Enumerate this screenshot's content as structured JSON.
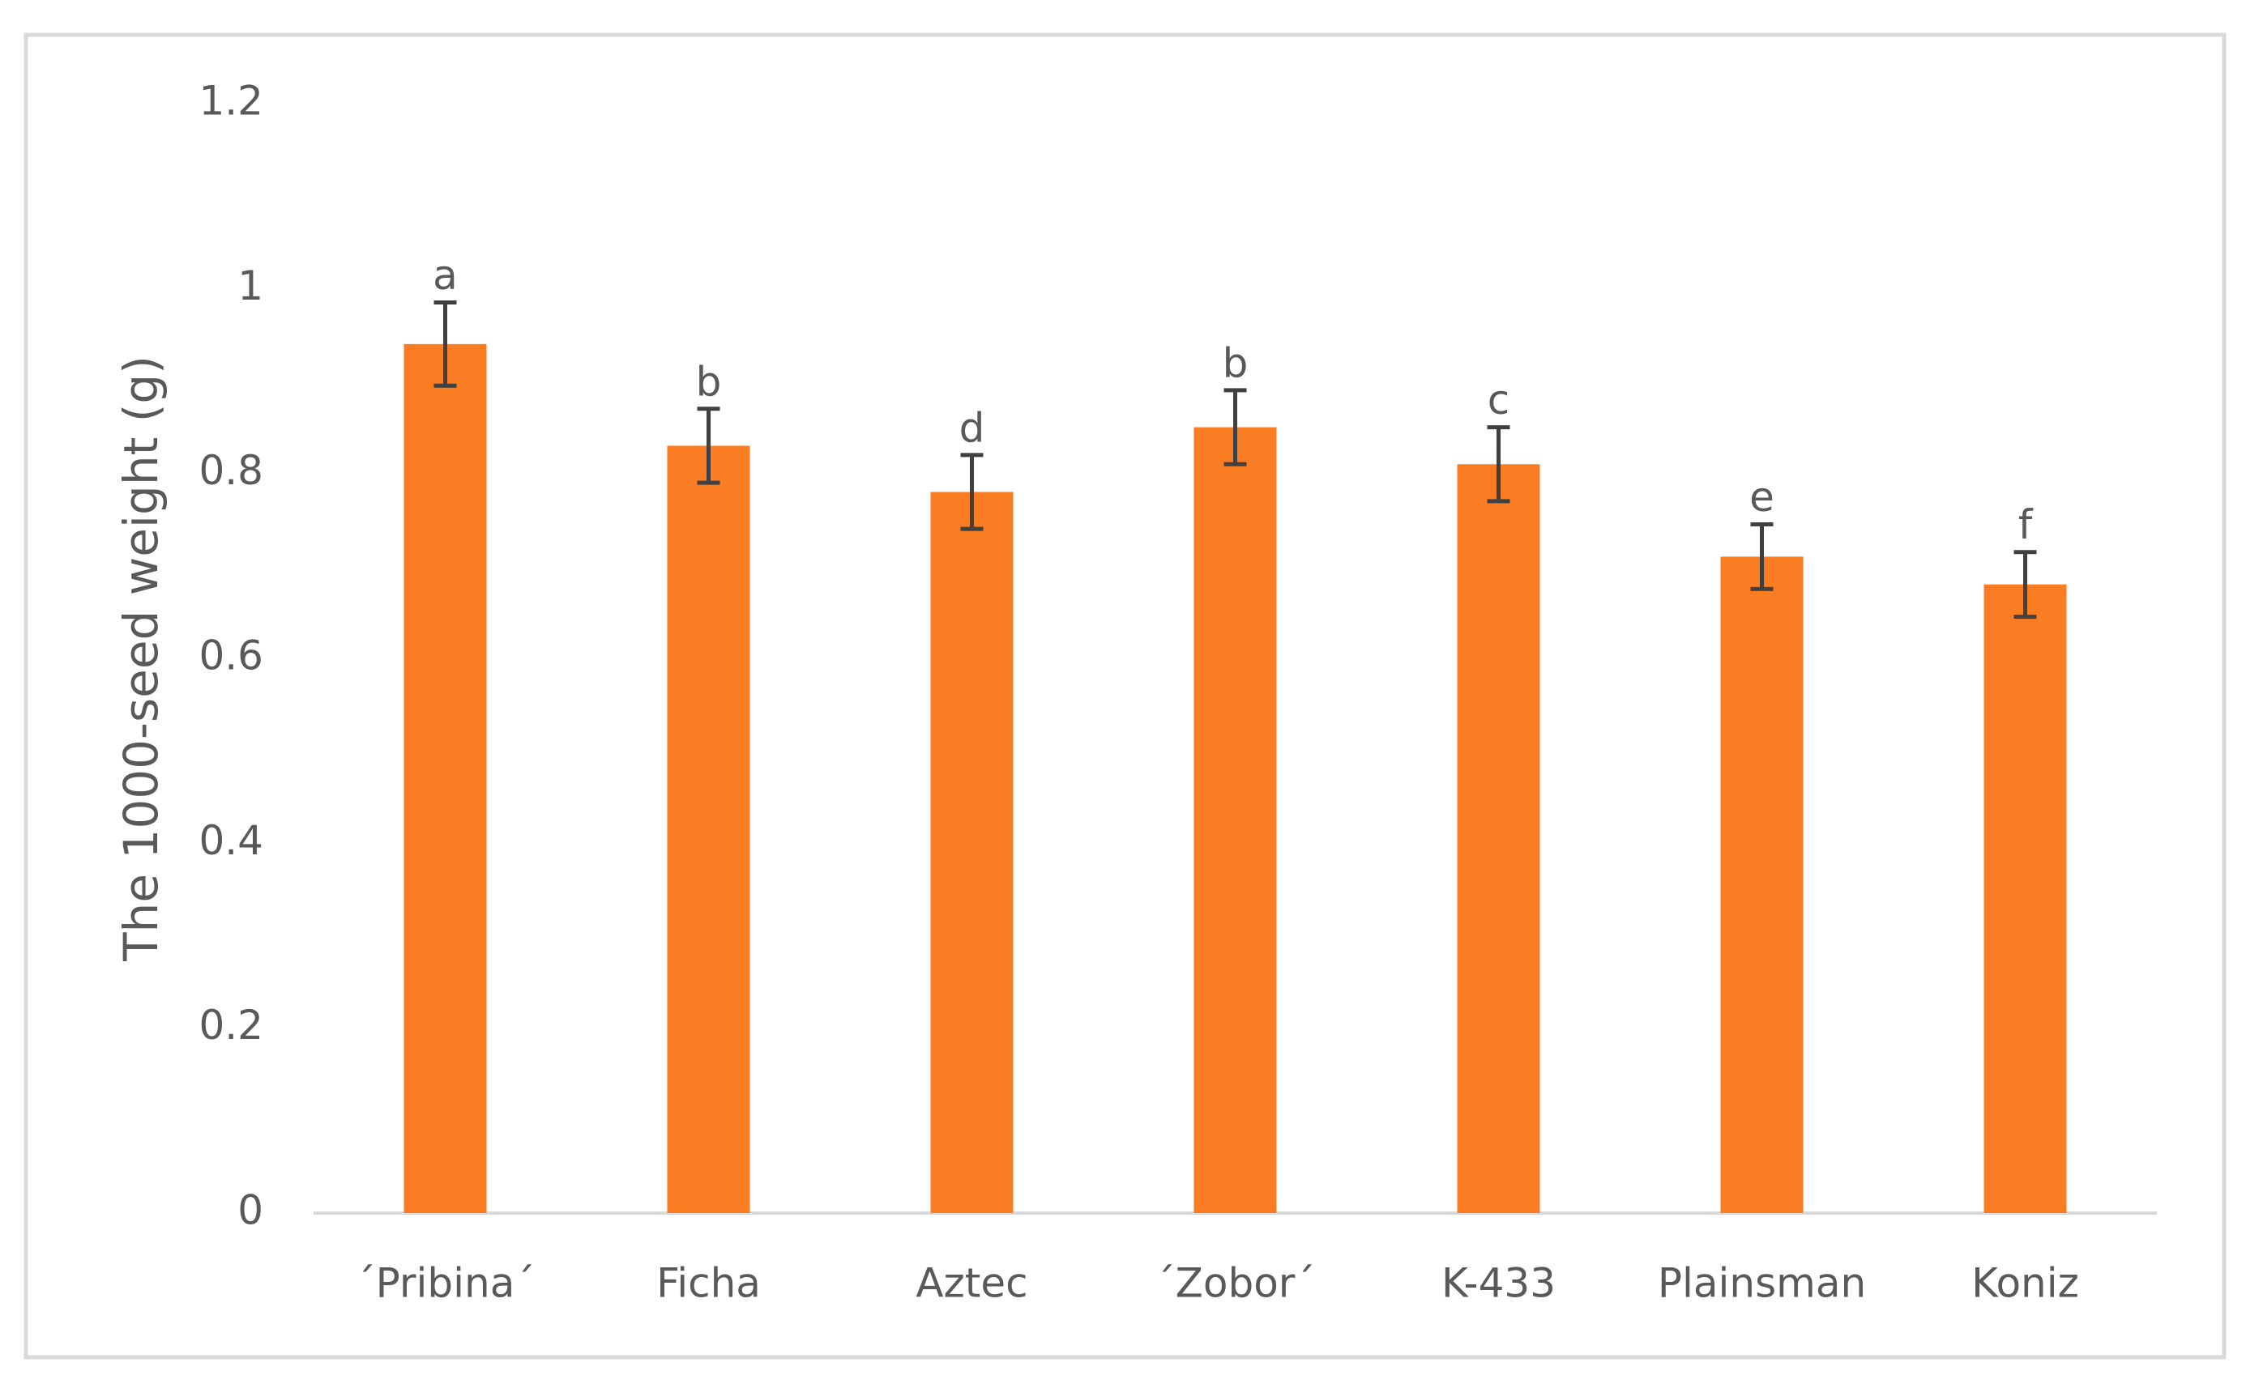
{
  "chart_data": {
    "type": "bar",
    "y_label": "The 1000-seed weight (g)",
    "categories": [
      "´Pribina´",
      "Ficha",
      "Aztec",
      "´Zobor´",
      "K-433",
      "Plainsman",
      "Koniz"
    ],
    "values": [
      0.94,
      0.83,
      0.78,
      0.85,
      0.81,
      0.71,
      0.68
    ],
    "errors": [
      0.045,
      0.04,
      0.04,
      0.04,
      0.04,
      0.035,
      0.035
    ],
    "letters": [
      "a",
      "b",
      "d",
      "b",
      "c",
      "e",
      "f"
    ],
    "color": "#fb7d23",
    "error_color": "#404040",
    "ylim": [
      0,
      1.2
    ],
    "yticks": [
      0,
      0.2,
      0.4,
      0.6,
      0.8,
      1,
      1.2
    ],
    "grid": false
  }
}
